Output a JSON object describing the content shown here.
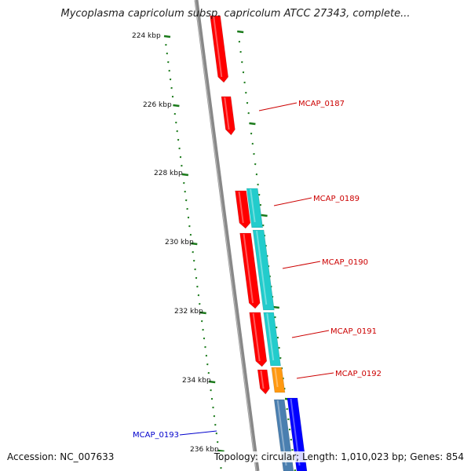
{
  "title": "Mycoplasma capricolum subsp. capricolum ATCC 27343, complete...",
  "footer": {
    "accession_label": "Accession:",
    "accession": "NC_007633",
    "topology_label": "Topology:",
    "topology": "circular",
    "length_label": "Length:",
    "length": "1,010,023 bp",
    "genes_label": "Genes:",
    "genes": "854"
  },
  "colors": {
    "backbone": "#888888",
    "ticks": "#1a7a1a",
    "forward_red": "#ff0000",
    "cyan": "#22cccc",
    "orange": "#ff9911",
    "blue": "#0000ff",
    "steel_blue": "#4a7fb0",
    "label_red": "#cc0000",
    "label_blue": "#0000cc"
  },
  "map": {
    "scale_labels": [
      "224 kbp",
      "226 kbp",
      "228 kbp",
      "230 kbp",
      "232 kbp",
      "234 kbp",
      "236 kbp"
    ],
    "gene_labels": [
      {
        "text": "MCAP_0187",
        "color": "red"
      },
      {
        "text": "MCAP_0189",
        "color": "red"
      },
      {
        "text": "MCAP_0190",
        "color": "red"
      },
      {
        "text": "MCAP_0191",
        "color": "red"
      },
      {
        "text": "MCAP_0192",
        "color": "red"
      },
      {
        "text": "MCAP_0193",
        "color": "blue"
      }
    ]
  }
}
